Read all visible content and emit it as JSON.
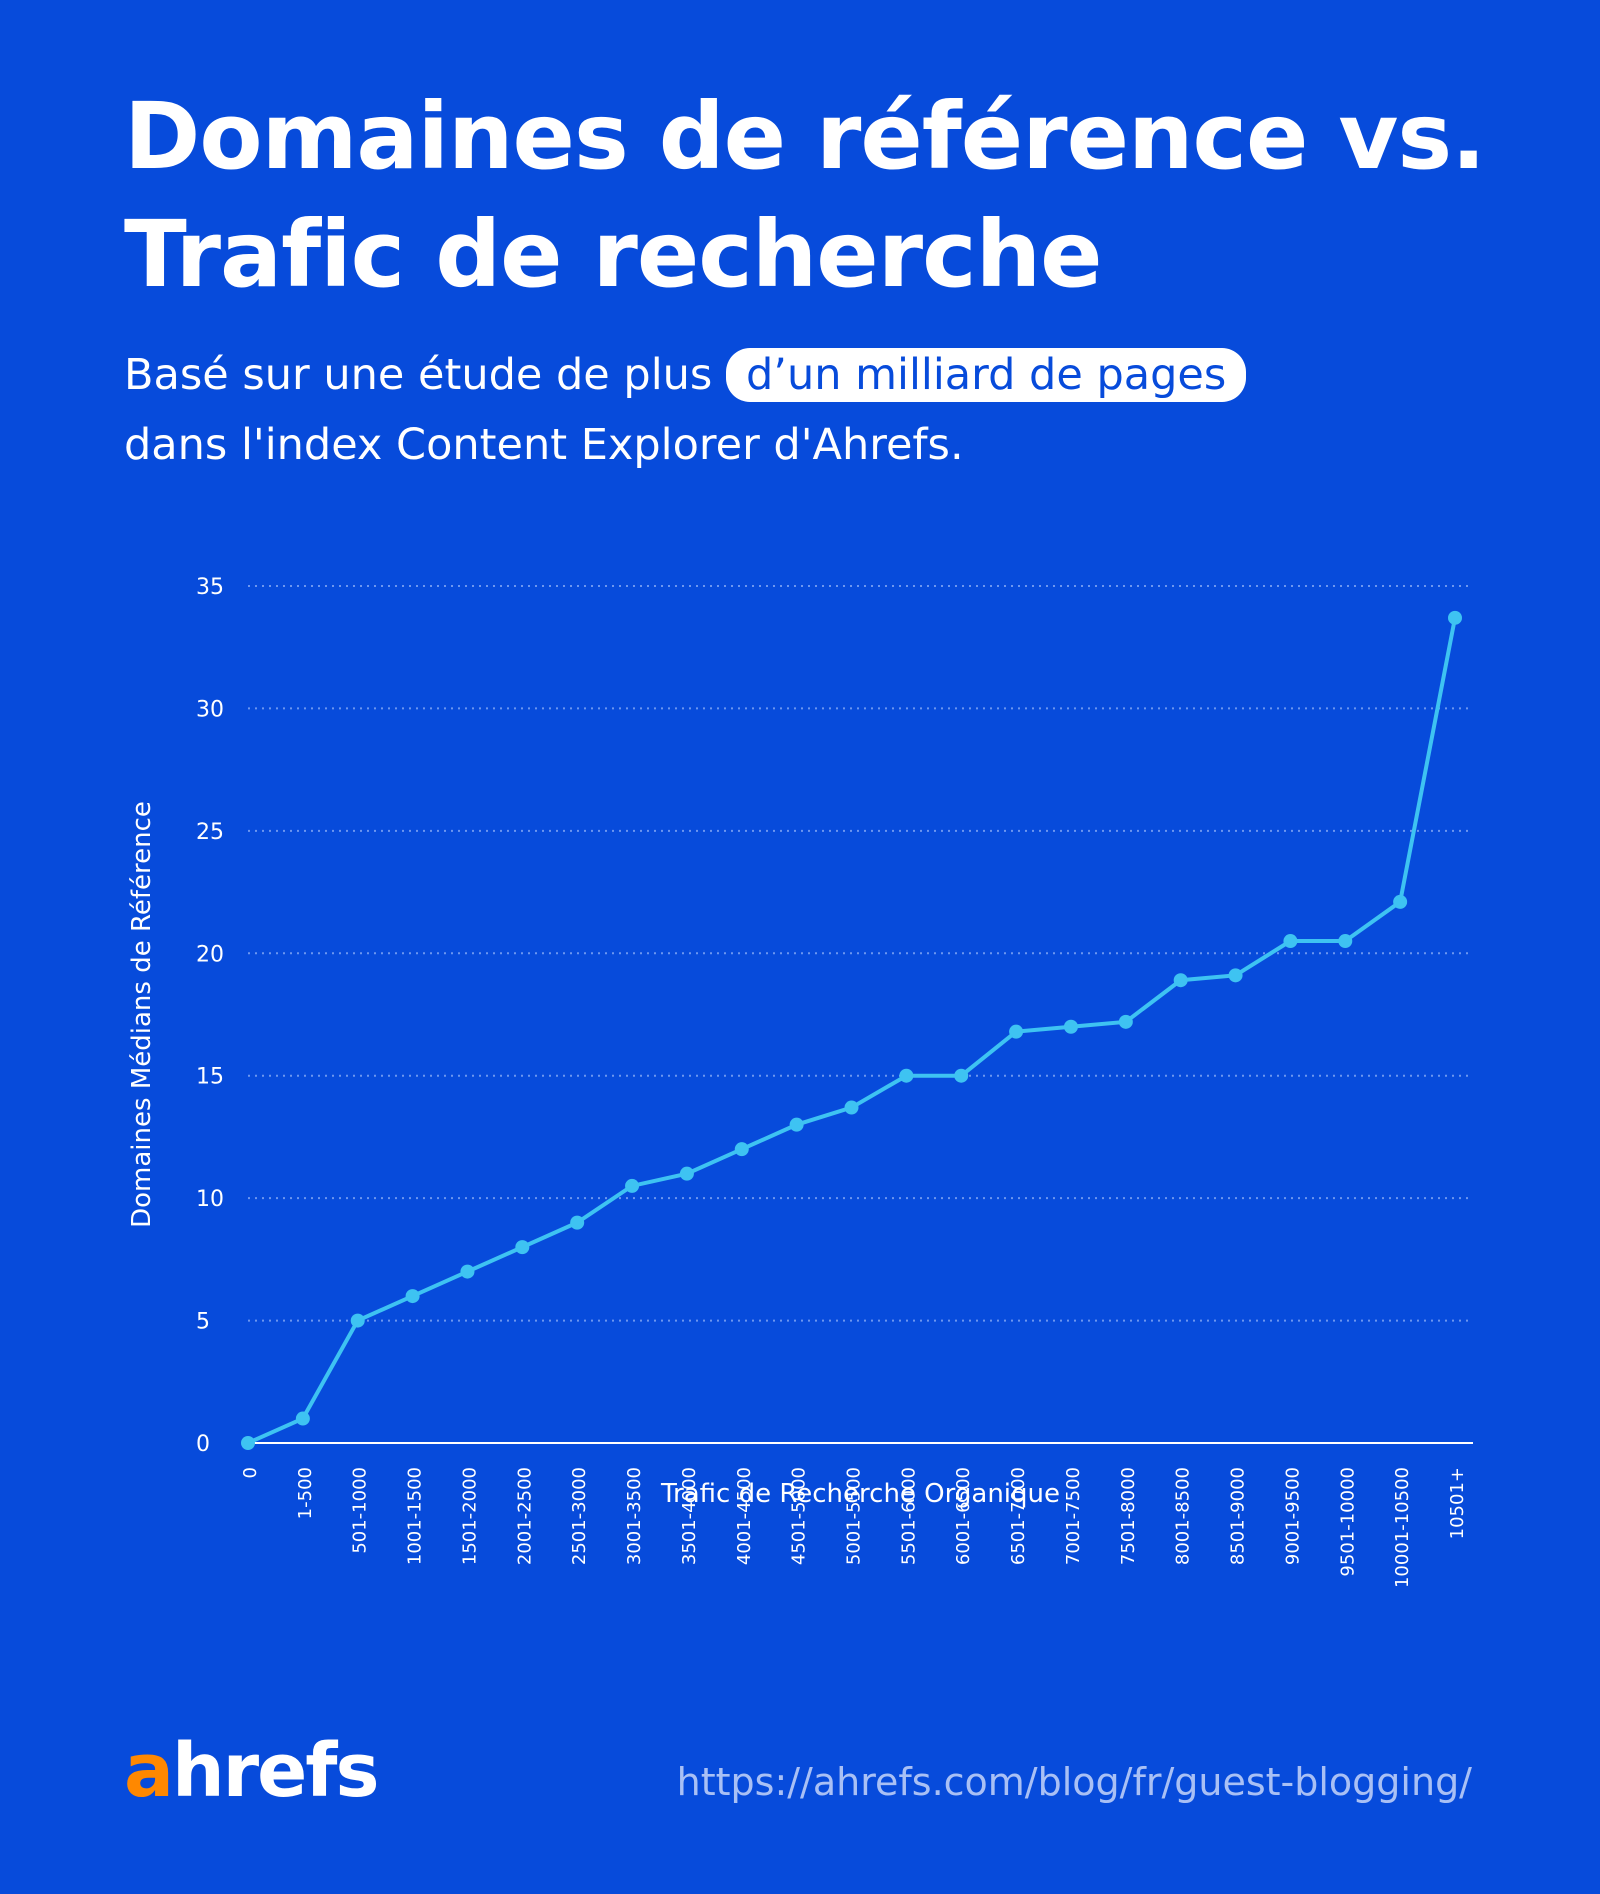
{
  "header": {
    "title_line1": "Domaines de référence vs.",
    "title_line2": "Trafic de recherche",
    "subtitle_pre": "Basé sur une étude de plus",
    "subtitle_highlight": "d’un milliard de pages",
    "subtitle_post": "dans l'index Content Explorer d'Ahrefs."
  },
  "footer": {
    "logo_a": "a",
    "logo_rest": "hrefs",
    "url": "https://ahrefs.com/blog/fr/guest-blogging/"
  },
  "colors": {
    "background": "#074bdb",
    "line": "#3ec3f2",
    "grid": "#6d97f0",
    "logo_accent": "#ff8800"
  },
  "chart_data": {
    "type": "line",
    "title": "Domaines de référence vs. Trafic de recherche",
    "xlabel": "Trafic de Recherche Organique",
    "ylabel": "Domaines Médians de Référence",
    "ylim": [
      0,
      35
    ],
    "yticks": [
      0,
      5,
      10,
      15,
      20,
      25,
      30,
      35
    ],
    "grid": "horizontal dotted",
    "legend": "none",
    "categories": [
      "0",
      "1-500",
      "501-1000",
      "1001-1500",
      "1501-2000",
      "2001-2500",
      "2501-3000",
      "3001-3500",
      "3501-4000",
      "4001-4500",
      "4501-5000",
      "5001-5500",
      "5501-6000",
      "6001-6500",
      "6501-7000",
      "7001-7500",
      "7501-8000",
      "8001-8500",
      "8501-9000",
      "9001-9500",
      "9501-10000",
      "10001-10500",
      "10501+"
    ],
    "series": [
      {
        "name": "Domaines Médians de Référence",
        "values": [
          0,
          1,
          5,
          6,
          7,
          8,
          9,
          10.5,
          11,
          12,
          13,
          13.7,
          15,
          15,
          16.8,
          17,
          17.2,
          18.9,
          19.1,
          20.5,
          20.5,
          22.1,
          33.7
        ]
      }
    ]
  }
}
